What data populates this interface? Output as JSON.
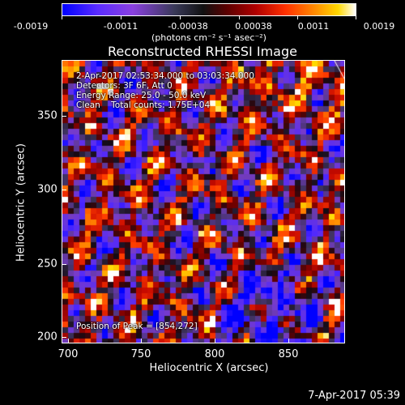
{
  "colorbar": {
    "ticks": [
      "-0.0019",
      "-0.0011",
      "-0.00038",
      "0.00038",
      "0.0011",
      "0.0019"
    ],
    "unit_label": "(photons cm⁻² s⁻¹ asec⁻²)"
  },
  "image": {
    "title": "Reconstructed RHESSI Image",
    "time_range": "2-Apr-2017 02:53:34.000 to 03:03:34.000",
    "detectors": "Detectors: 3F 6F, Att 0",
    "energy_range": "Energy Range: 25.0 - 50.0 keV",
    "clean_info": "Clean    Total counts: 1.75E+04",
    "peak_position": "Position of Peak = [854,272]"
  },
  "axes": {
    "x_label": "Heliocentric X (arcsec)",
    "y_label": "Heliocentric Y (arcsec)",
    "x_ticks": [
      "700",
      "750",
      "800",
      "850"
    ],
    "y_ticks": [
      "350",
      "300",
      "250",
      "200"
    ]
  },
  "timestamp": "7-Apr-2017 05:39",
  "colors": {
    "background": "#000000",
    "foreground": "#ffffff"
  }
}
